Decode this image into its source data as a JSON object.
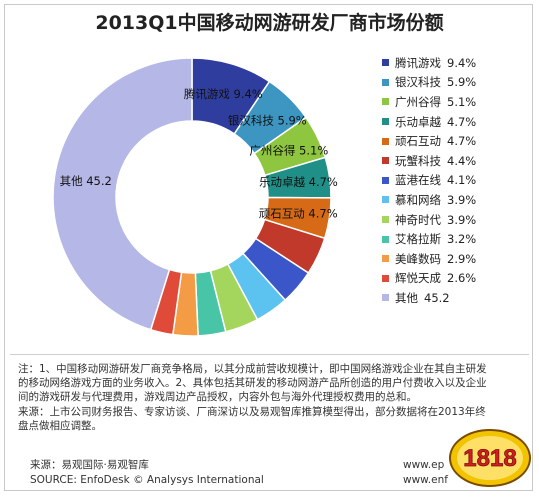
{
  "chart_data": {
    "type": "pie",
    "title": "2013Q1中国移动网游研发厂商市场份额",
    "legend_position": "right",
    "series": [
      {
        "label": "腾讯游戏",
        "value": 9.4,
        "value_text": "9.4%",
        "color": "#2f3e9e"
      },
      {
        "label": "银汉科技",
        "value": 5.9,
        "value_text": "5.9%",
        "color": "#3d96c2"
      },
      {
        "label": "广州谷得",
        "value": 5.1,
        "value_text": "5.1%",
        "color": "#8fc63f"
      },
      {
        "label": "乐动卓越",
        "value": 4.7,
        "value_text": "4.7%",
        "color": "#1f8f88"
      },
      {
        "label": "顽石互动",
        "value": 4.7,
        "value_text": "4.7%",
        "color": "#d66a17"
      },
      {
        "label": "玩蟹科技",
        "value": 4.4,
        "value_text": "4.4%",
        "color": "#c0392b"
      },
      {
        "label": "蓝港在线",
        "value": 4.1,
        "value_text": "4.1%",
        "color": "#3a56c8"
      },
      {
        "label": "慕和网络",
        "value": 3.9,
        "value_text": "3.9%",
        "color": "#5cc2f0"
      },
      {
        "label": "神奇时代",
        "value": 3.9,
        "value_text": "3.9%",
        "color": "#a4d65e"
      },
      {
        "label": "艾格拉斯",
        "value": 3.2,
        "value_text": "3.2%",
        "color": "#48c4a6"
      },
      {
        "label": "美峰数码",
        "value": 2.9,
        "value_text": "2.9%",
        "color": "#f39c45"
      },
      {
        "label": "辉悦天成",
        "value": 2.6,
        "value_text": "2.6%",
        "color": "#e04a38"
      },
      {
        "label": "其他",
        "value": 45.2,
        "value_text": "45.2",
        "color": "#b5b8e6"
      }
    ],
    "slice_labels": [
      {
        "index": 0,
        "text": "腾讯游戏 9.4%"
      },
      {
        "index": 1,
        "text": "银汉科技 5.9%"
      },
      {
        "index": 2,
        "text": "广州谷得 5.1%"
      },
      {
        "index": 3,
        "text": "乐动卓越 4.7%"
      },
      {
        "index": 4,
        "text": "顽石互动 4.7%"
      },
      {
        "index": 12,
        "text": "其他 45.2"
      }
    ]
  },
  "notes": [
    "注：1、中国移动网游研发厂商竞争格局，以其分成前营收规模计，即中国网络游戏企业在其自主研发",
    "的移动网络游戏方面的业务收入。2、具体包括其研发的移动网游产品所创造的用户付费收入以及企业",
    "间的游戏研发与代理费用，游戏周边产品授权，内容外包与海外代理授权费用的总和。",
    "来源：上市公司财务报告、专家访谈、厂商深访以及易观智库推算模型得出，部分数据将在2013年终",
    "盘点做相应调整。"
  ],
  "source_cn": "来源：易观国际·易观智库",
  "source_en": "SOURCE: EnfoDesk © Analysys International",
  "watermark_url": "www.ep",
  "watermark_url2": "www.enf",
  "logo_text": "1818"
}
